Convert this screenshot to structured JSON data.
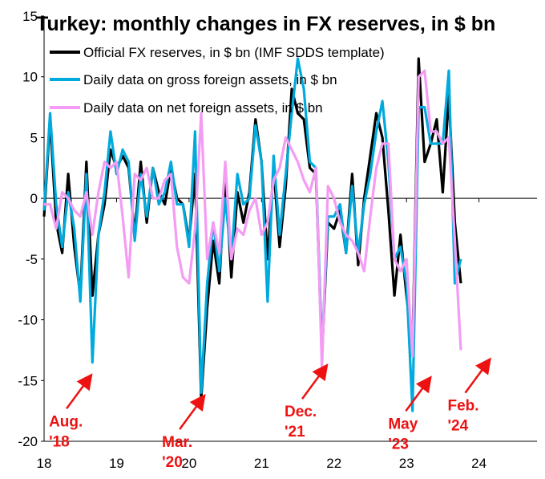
{
  "chart_data": {
    "type": "line",
    "title": "Turkey: monthly changes in FX reserves, in $ bn",
    "xlabel": "",
    "ylabel": "",
    "ylim": [
      -20,
      15
    ],
    "y_ticks": [
      "15",
      "10",
      "5",
      "0",
      "-5",
      "-10",
      "-15",
      "-20"
    ],
    "x_ticks": [
      {
        "label": "18",
        "x": 2018.0
      },
      {
        "label": "19",
        "x": 2019.0
      },
      {
        "label": "20",
        "x": 2020.0
      },
      {
        "label": "21",
        "x": 2021.0
      },
      {
        "label": "22",
        "x": 2022.0
      },
      {
        "label": "23",
        "x": 2023.0
      },
      {
        "label": "24",
        "x": 2024.0
      }
    ],
    "x_start": 2018.0,
    "x_step": 0.0833333,
    "legend": [
      {
        "label": "Official FX reserves, in $ bn (IMF SDDS template)",
        "color": "#000000"
      },
      {
        "label": "Daily data on gross foreign assets, in $ bn",
        "color": "#00aadd"
      },
      {
        "label": "Daily data on net foreign assets, in $ bn",
        "color": "#f49cf4"
      }
    ],
    "series": [
      {
        "name": "Official FX reserves, in $ bn (IMF SDDS template)",
        "color": "#000000",
        "values": [
          -1.5,
          6.5,
          -2.0,
          -4.5,
          2.0,
          -4.0,
          -8.0,
          3.0,
          -8.0,
          -3.0,
          -0.5,
          4.0,
          2.5,
          3.5,
          2.5,
          -3.0,
          3.0,
          -2.0,
          2.5,
          0.5,
          -0.5,
          2.5,
          0.0,
          -0.5,
          -3.5,
          2.0,
          -16.5,
          -9.0,
          -3.5,
          -7.0,
          2.0,
          -6.5,
          0.5,
          -2.0,
          0.5,
          6.5,
          3.0,
          -5.0,
          2.5,
          -4.0,
          1.0,
          9.0,
          7.0,
          6.5,
          2.5,
          2.0,
          -13.0,
          -2.0,
          -2.5,
          -1.0,
          -4.5,
          2.0,
          -5.5,
          0.0,
          3.5,
          7.0,
          5.0,
          -1.0,
          -8.0,
          -3.0,
          -8.0,
          -12.5,
          11.5,
          3.0,
          4.5,
          6.5,
          0.5,
          8.5,
          -2.0,
          -7.0
        ]
      },
      {
        "name": "Daily data on gross foreign assets, in $ bn",
        "color": "#00aadd",
        "values": [
          -1.0,
          7.0,
          -0.5,
          -4.0,
          0.5,
          -2.5,
          -8.5,
          2.0,
          -13.5,
          -3.0,
          0.5,
          5.5,
          2.0,
          4.0,
          3.0,
          -3.5,
          2.0,
          -1.5,
          2.5,
          -0.5,
          0.5,
          3.0,
          -0.5,
          -0.5,
          -4.0,
          5.5,
          -16.0,
          -7.0,
          -2.0,
          -6.0,
          0.0,
          -5.0,
          2.0,
          -0.5,
          0.0,
          6.0,
          3.0,
          -8.5,
          3.5,
          -3.0,
          2.0,
          7.0,
          11.5,
          9.0,
          3.0,
          2.5,
          -12.5,
          -1.5,
          -1.5,
          -0.5,
          -4.5,
          1.0,
          -4.5,
          -0.5,
          2.0,
          5.5,
          8.0,
          3.0,
          -5.0,
          -4.0,
          -7.0,
          -17.5,
          7.5,
          7.5,
          4.5,
          4.5,
          4.5,
          10.5,
          -7.0,
          -5.0
        ]
      },
      {
        "name": "Daily data on net foreign assets, in $ bn",
        "color": "#f49cf4",
        "values": [
          -0.5,
          -0.5,
          -2.5,
          0.5,
          0.0,
          -1.0,
          -1.5,
          0.5,
          -3.0,
          0.5,
          3.0,
          2.5,
          3.0,
          -1.5,
          -6.5,
          2.0,
          1.5,
          2.5,
          0.0,
          0.0,
          1.5,
          2.0,
          -4.0,
          -6.5,
          -7.0,
          -2.5,
          7.0,
          -5.0,
          -2.0,
          -4.5,
          3.0,
          -5.0,
          -2.5,
          -3.0,
          -1.0,
          0.0,
          -3.0,
          -2.0,
          1.5,
          2.5,
          5.0,
          4.0,
          3.0,
          1.5,
          0.5,
          2.5,
          -14.0,
          1.0,
          0.0,
          -2.0,
          -3.0,
          -3.5,
          -4.5,
          -6.0,
          -1.5,
          2.5,
          4.5,
          4.5,
          -5.0,
          -6.0,
          -5.0,
          -13.0,
          10.0,
          10.5,
          5.5,
          5.5,
          4.5,
          5.0,
          -3.5,
          -12.5
        ]
      }
    ],
    "annotations": [
      {
        "line1": "Aug.",
        "line2": "'18",
        "point_x": 2018.62,
        "point_y": -14.8
      },
      {
        "line1": "Mar.",
        "line2": "'20",
        "point_x": 2020.18,
        "point_y": -16.5
      },
      {
        "line1": "Dec.",
        "line2": "'21",
        "point_x": 2021.87,
        "point_y": -14.0
      },
      {
        "line1": "May",
        "line2": "'23",
        "point_x": 2023.3,
        "point_y": -15.0
      },
      {
        "line1": "Feb.",
        "line2": "'24",
        "point_x": 2024.12,
        "point_y": -13.5
      }
    ]
  }
}
